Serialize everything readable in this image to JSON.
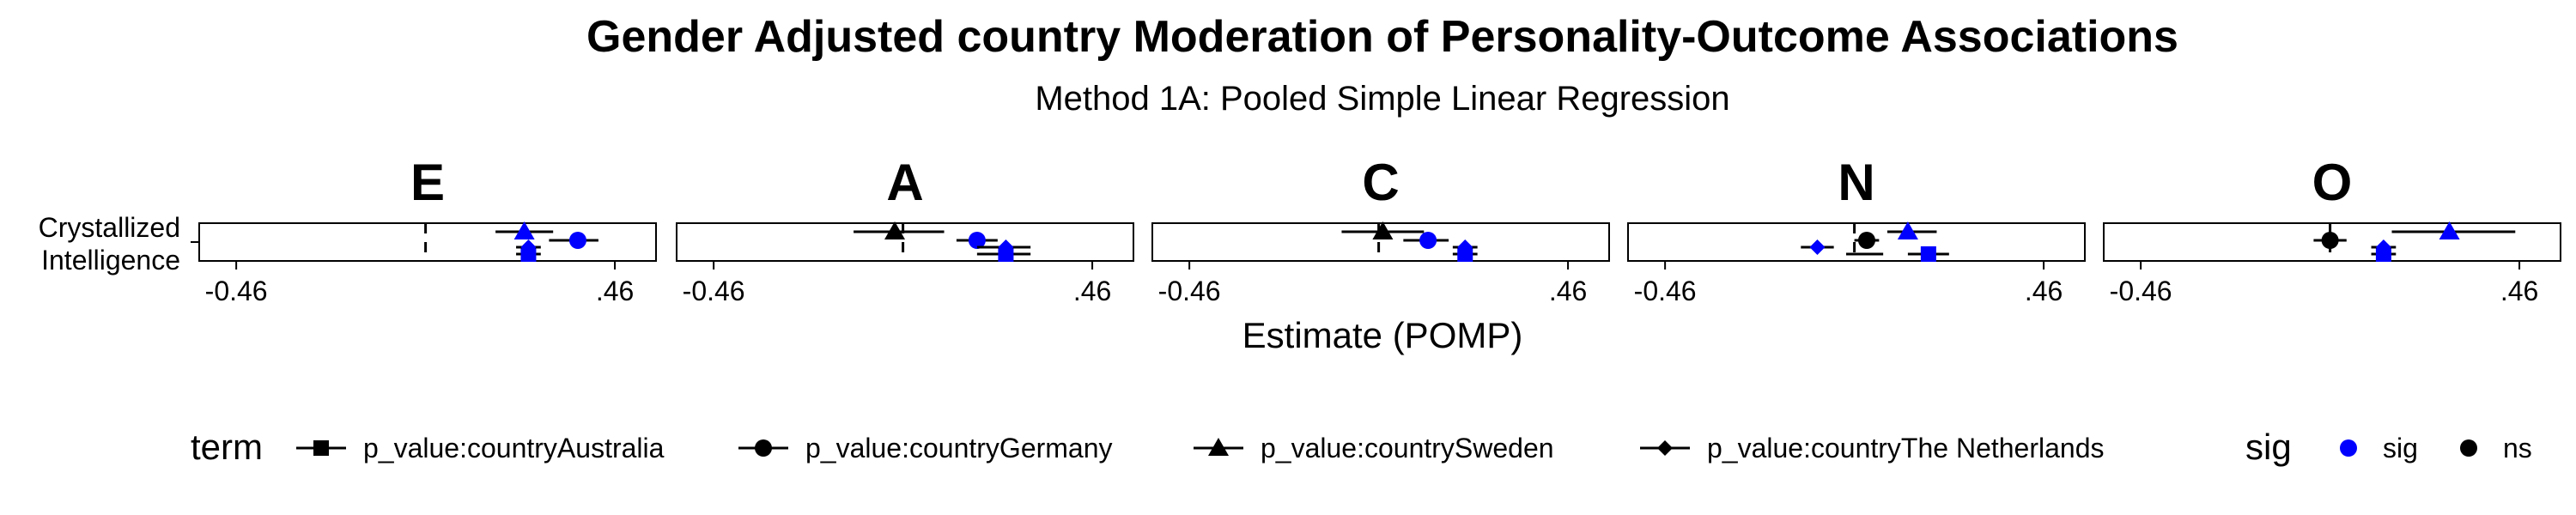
{
  "chart_data": {
    "type": "scatter",
    "title": "Gender Adjusted country Moderation of Personality-Outcome Associations",
    "subtitle": "Method 1A: Pooled Simple Linear Regression",
    "xlabel": "Estimate (POMP)",
    "y_category": [
      "Crystallized",
      "Intelligence"
    ],
    "x_tick_labels": [
      "-0.46",
      ".46"
    ],
    "xlim": [
      -0.55,
      0.56
    ],
    "reference_line_x": 0,
    "facets": [
      "E",
      "A",
      "C",
      "N",
      "O"
    ],
    "legend": {
      "term_title": "term",
      "terms": [
        {
          "label": "p_value:countryAustralia",
          "shape": "square"
        },
        {
          "label": "p_value:countryGermany",
          "shape": "circle"
        },
        {
          "label": "p_value:countrySweden",
          "shape": "triangle"
        },
        {
          "label": "p_value:countryThe Netherlands",
          "shape": "diamond"
        }
      ],
      "sig_title": "sig",
      "sig": [
        {
          "label": "sig",
          "color": "#0000FF"
        },
        {
          "label": "ns",
          "color": "#000000"
        }
      ],
      "placement": "bottom"
    },
    "series": [
      {
        "facet": "E",
        "term": "p_value:countryAustralia",
        "estimate": 0.25,
        "ci": [
          0.22,
          0.28
        ],
        "sig": "sig"
      },
      {
        "facet": "E",
        "term": "p_value:countryGermany",
        "estimate": 0.37,
        "ci": [
          0.3,
          0.42
        ],
        "sig": "sig"
      },
      {
        "facet": "E",
        "term": "p_value:countrySweden",
        "estimate": 0.24,
        "ci": [
          0.17,
          0.31
        ],
        "sig": "sig"
      },
      {
        "facet": "E",
        "term": "p_value:countryThe Netherlands",
        "estimate": 0.25,
        "ci": [
          0.22,
          0.28
        ],
        "sig": "sig"
      },
      {
        "facet": "A",
        "term": "p_value:countryAustralia",
        "estimate": 0.25,
        "ci": [
          0.18,
          0.31
        ],
        "sig": "sig"
      },
      {
        "facet": "A",
        "term": "p_value:countryGermany",
        "estimate": 0.18,
        "ci": [
          0.13,
          0.23
        ],
        "sig": "sig"
      },
      {
        "facet": "A",
        "term": "p_value:countrySweden",
        "estimate": -0.02,
        "ci": [
          -0.12,
          0.1
        ],
        "sig": "ns"
      },
      {
        "facet": "A",
        "term": "p_value:countryThe Netherlands",
        "estimate": 0.25,
        "ci": [
          0.18,
          0.31
        ],
        "sig": "sig"
      },
      {
        "facet": "C",
        "term": "p_value:countryAustralia",
        "estimate": 0.21,
        "ci": [
          0.18,
          0.24
        ],
        "sig": "sig"
      },
      {
        "facet": "C",
        "term": "p_value:countryGermany",
        "estimate": 0.12,
        "ci": [
          0.06,
          0.17
        ],
        "sig": "sig"
      },
      {
        "facet": "C",
        "term": "p_value:countrySweden",
        "estimate": 0.01,
        "ci": [
          -0.09,
          0.11
        ],
        "sig": "ns"
      },
      {
        "facet": "C",
        "term": "p_value:countryThe Netherlands",
        "estimate": 0.21,
        "ci": [
          0.18,
          0.24
        ],
        "sig": "sig"
      },
      {
        "facet": "N",
        "term": "p_value:countryAustralia",
        "estimate": 0.18,
        "ci": [
          0.13,
          0.23
        ],
        "sig": "sig"
      },
      {
        "facet": "N",
        "term": "p_value:countryGermany",
        "estimate": 0.03,
        "ci": [
          0.0,
          0.06
        ],
        "sig": "ns"
      },
      {
        "facet": "N",
        "term": "p_value:countrySweden",
        "estimate": 0.13,
        "ci": [
          0.08,
          0.2
        ],
        "sig": "sig"
      },
      {
        "facet": "N",
        "term": "p_value:countryThe Netherlands",
        "estimate": -0.09,
        "ci": [
          -0.13,
          -0.05
        ],
        "sig": "sig"
      },
      {
        "facet": "N",
        "term": "p_value:countryAustralia",
        "estimate": 0.0,
        "ci": [
          -0.02,
          0.07
        ],
        "sig": "ns",
        "marker": "none"
      },
      {
        "facet": "O",
        "term": "p_value:countryAustralia",
        "estimate": 0.13,
        "ci": [
          0.1,
          0.16
        ],
        "sig": "sig"
      },
      {
        "facet": "O",
        "term": "p_value:countryGermany",
        "estimate": 0.0,
        "ci": [
          -0.04,
          0.04
        ],
        "sig": "ns"
      },
      {
        "facet": "O",
        "term": "p_value:countrySweden",
        "estimate": 0.29,
        "ci": [
          0.15,
          0.45
        ],
        "sig": "sig"
      },
      {
        "facet": "O",
        "term": "p_value:countryThe Netherlands",
        "estimate": 0.13,
        "ci": [
          0.1,
          0.16
        ],
        "sig": "sig"
      }
    ]
  }
}
